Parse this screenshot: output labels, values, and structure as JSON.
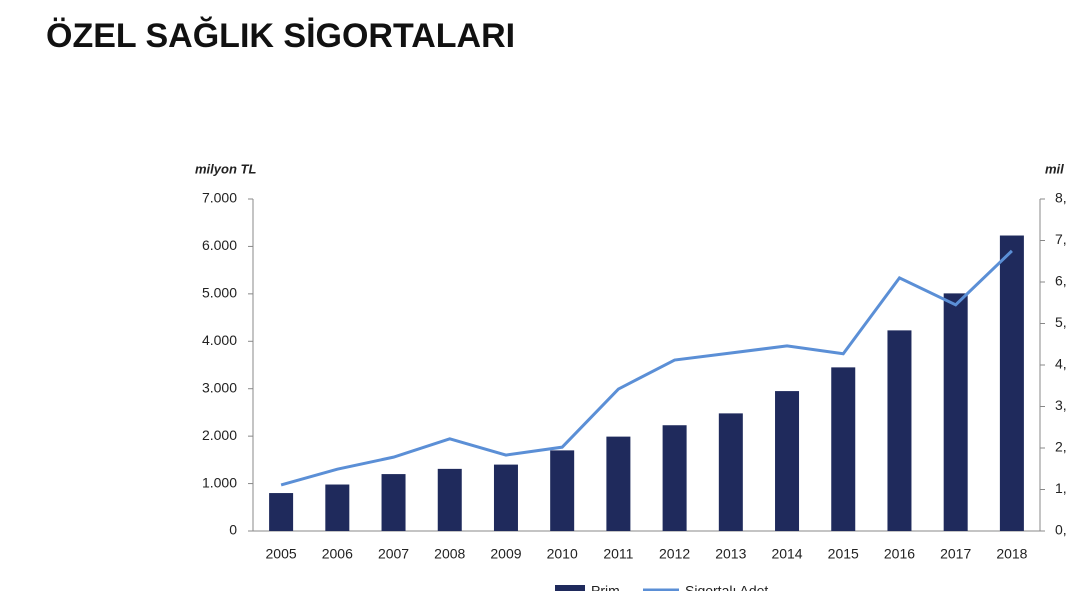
{
  "chart_data": {
    "type": "bar_line",
    "title": "ÖZEL SAĞLIK SİGORTALARI",
    "y_label": "milyon TL",
    "y2_label": "mil",
    "categories": [
      "2005",
      "2006",
      "2007",
      "2008",
      "2009",
      "2010",
      "2011",
      "2012",
      "2013",
      "2014",
      "2015",
      "2016",
      "2017",
      "2018"
    ],
    "series": [
      {
        "name": "Prim",
        "type": "bar",
        "color": "#1f2a5c",
        "values": [
          800,
          980,
          1200,
          1310,
          1400,
          1700,
          1990,
          2230,
          2480,
          2950,
          3450,
          4230,
          5010,
          6230
        ]
      },
      {
        "name": "Sigortalı Adet",
        "type": "line",
        "axis": "y2",
        "color": "#5b8fd6",
        "values": [
          1.11,
          1.49,
          1.78,
          2.22,
          1.83,
          2.02,
          3.42,
          4.12,
          4.29,
          4.46,
          4.27,
          6.1,
          5.45,
          6.75
        ]
      }
    ],
    "ylim": [
      0,
      7000
    ],
    "yticks": [
      0,
      {
        "value": 1000,
        "label": "1.000"
      },
      {
        "value": 2000,
        "label": "2.000"
      },
      {
        "value": 3000,
        "label": "3.000"
      },
      {
        "value": 4000,
        "label": "4.000"
      },
      {
        "value": 5000,
        "label": "5.000"
      },
      {
        "value": 6000,
        "label": "6.000"
      },
      {
        "value": 7000,
        "label": "7.000"
      }
    ],
    "y2lim": [
      0,
      8
    ],
    "y2ticks": [
      {
        "value": 0,
        "label": "0,"
      },
      {
        "value": 1,
        "label": "1,"
      },
      {
        "value": 2,
        "label": "2,"
      },
      {
        "value": 3,
        "label": "3,"
      },
      {
        "value": 4,
        "label": "4,"
      },
      {
        "value": 5,
        "label": "5,"
      },
      {
        "value": 6,
        "label": "6,"
      },
      {
        "value": 7,
        "label": "7,"
      },
      {
        "value": 8,
        "label": "8,"
      }
    ],
    "legend": "bottom"
  }
}
